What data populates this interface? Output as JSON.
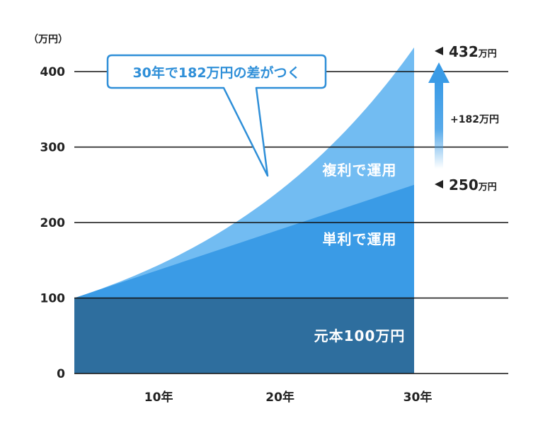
{
  "chart_data": {
    "type": "area",
    "unit_label": "（万円）",
    "y_ticks": [
      "0",
      "100",
      "200",
      "300",
      "400"
    ],
    "x_ticks": [
      {
        "year": 10,
        "label": "10年"
      },
      {
        "year": 20,
        "label": "20年"
      },
      {
        "year": 30,
        "label": "30年"
      }
    ],
    "ylim": [
      0,
      400
    ],
    "grid": true,
    "series": [
      {
        "name": "元本100万円",
        "start": 100,
        "end": 100,
        "color": "#2e6e9e"
      },
      {
        "name": "単利で運用",
        "start": 100,
        "end": 250,
        "color": "#3a9be6"
      },
      {
        "name": "複利で運用",
        "start": 100,
        "end": 432,
        "color": "#72bcf2"
      }
    ],
    "callout": "30年で182万円の差がつく",
    "annotations": {
      "compound_end": {
        "value": "432",
        "unit": "万円"
      },
      "simple_end": {
        "value": "250",
        "unit": "万円"
      },
      "difference": "+182万円"
    }
  },
  "colors": {
    "principal": "#2e6e9e",
    "simple": "#3a9be6",
    "compound": "#72bcf2",
    "arrow": "#3a9be6",
    "callout_border": "#2f8fd8"
  }
}
